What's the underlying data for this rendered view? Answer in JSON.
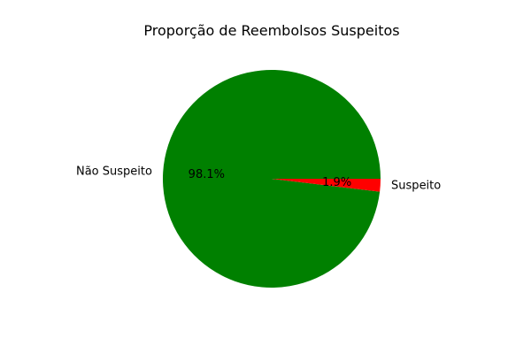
{
  "chart_data": {
    "type": "pie",
    "title": "Proporção de Reembolsos Suspeitos",
    "categories": [
      "Não Suspeito",
      "Suspeito"
    ],
    "values": [
      98.1,
      1.9
    ],
    "percent_labels": [
      "98.1%",
      "1.9%"
    ],
    "colors": [
      "#008000",
      "#ff0000"
    ],
    "start_angle_deg": 0,
    "direction": "counterclockwise",
    "legend": "none",
    "grid": false
  }
}
